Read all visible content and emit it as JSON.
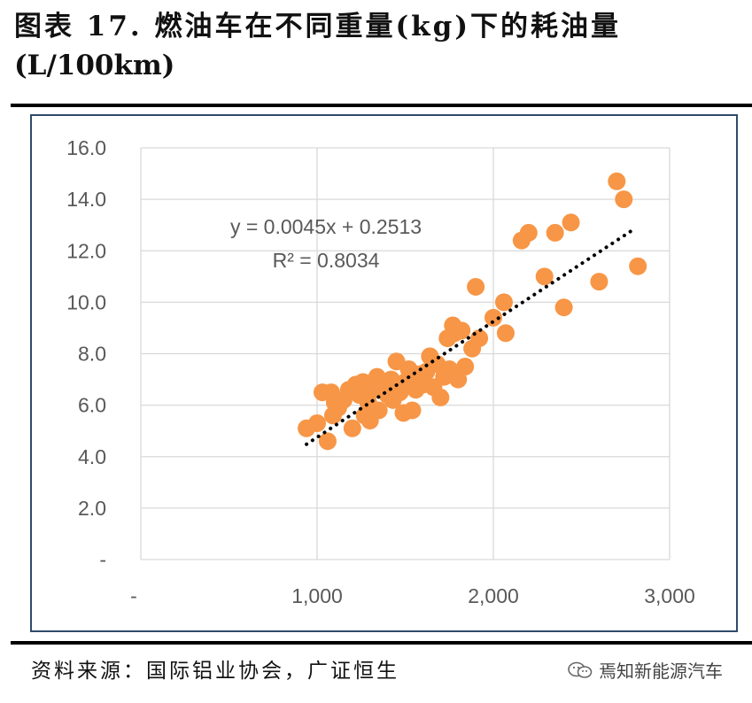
{
  "title": {
    "line1": "图表 17. 燃油车在不同重量(kg)下的耗油量",
    "line2": "(L/100km)"
  },
  "source": "资料来源：国际铝业协会，广证恒生",
  "watermark": "焉知新能源汽车",
  "chart_data": {
    "type": "scatter",
    "title": "",
    "xlabel": "",
    "ylabel": "",
    "xlim": [
      0,
      3000
    ],
    "ylim": [
      0,
      16
    ],
    "x_ticks": [
      "-",
      "1,000",
      "2,000",
      "3,000"
    ],
    "y_ticks": [
      "-",
      "2.0",
      "4.0",
      "6.0",
      "8.0",
      "10.0",
      "12.0",
      "14.0",
      "16.0"
    ],
    "grid": true,
    "legend": "none",
    "marker_color": "#F79646",
    "trendline": {
      "type": "linear",
      "slope": 0.0045,
      "intercept": 0.2513,
      "x_range": [
        940,
        2780
      ],
      "style": "dotted",
      "color": "#000000",
      "equation_label": "y = 0.0045x + 0.2513",
      "r2_label": "R² = 0.8034"
    },
    "points": [
      {
        "x": 940,
        "y": 5.1
      },
      {
        "x": 1000,
        "y": 5.3
      },
      {
        "x": 1030,
        "y": 6.5
      },
      {
        "x": 1060,
        "y": 4.6
      },
      {
        "x": 1080,
        "y": 6.5
      },
      {
        "x": 1090,
        "y": 5.6
      },
      {
        "x": 1100,
        "y": 6.1
      },
      {
        "x": 1120,
        "y": 5.9
      },
      {
        "x": 1150,
        "y": 6.2
      },
      {
        "x": 1180,
        "y": 6.6
      },
      {
        "x": 1200,
        "y": 5.1
      },
      {
        "x": 1220,
        "y": 6.8
      },
      {
        "x": 1240,
        "y": 6.4
      },
      {
        "x": 1260,
        "y": 6.9
      },
      {
        "x": 1270,
        "y": 5.6
      },
      {
        "x": 1290,
        "y": 6.1
      },
      {
        "x": 1300,
        "y": 5.4
      },
      {
        "x": 1320,
        "y": 6.6
      },
      {
        "x": 1340,
        "y": 7.1
      },
      {
        "x": 1350,
        "y": 5.8
      },
      {
        "x": 1370,
        "y": 6.8
      },
      {
        "x": 1400,
        "y": 6.4
      },
      {
        "x": 1420,
        "y": 7.0
      },
      {
        "x": 1430,
        "y": 6.2
      },
      {
        "x": 1450,
        "y": 7.7
      },
      {
        "x": 1470,
        "y": 6.5
      },
      {
        "x": 1490,
        "y": 5.7
      },
      {
        "x": 1500,
        "y": 6.9
      },
      {
        "x": 1520,
        "y": 7.4
      },
      {
        "x": 1540,
        "y": 5.8
      },
      {
        "x": 1560,
        "y": 6.6
      },
      {
        "x": 1580,
        "y": 7.2
      },
      {
        "x": 1600,
        "y": 6.8
      },
      {
        "x": 1620,
        "y": 7.3
      },
      {
        "x": 1640,
        "y": 7.9
      },
      {
        "x": 1660,
        "y": 6.7
      },
      {
        "x": 1680,
        "y": 7.6
      },
      {
        "x": 1700,
        "y": 6.3
      },
      {
        "x": 1720,
        "y": 7.1
      },
      {
        "x": 1740,
        "y": 8.6
      },
      {
        "x": 1750,
        "y": 7.4
      },
      {
        "x": 1770,
        "y": 9.1
      },
      {
        "x": 1780,
        "y": 8.8
      },
      {
        "x": 1800,
        "y": 7.0
      },
      {
        "x": 1820,
        "y": 8.9
      },
      {
        "x": 1840,
        "y": 7.5
      },
      {
        "x": 1880,
        "y": 8.2
      },
      {
        "x": 1900,
        "y": 10.6
      },
      {
        "x": 1920,
        "y": 8.6
      },
      {
        "x": 2000,
        "y": 9.4
      },
      {
        "x": 2060,
        "y": 10.0
      },
      {
        "x": 2070,
        "y": 8.8
      },
      {
        "x": 2160,
        "y": 12.4
      },
      {
        "x": 2200,
        "y": 12.7
      },
      {
        "x": 2290,
        "y": 11.0
      },
      {
        "x": 2350,
        "y": 12.7
      },
      {
        "x": 2400,
        "y": 9.8
      },
      {
        "x": 2440,
        "y": 13.1
      },
      {
        "x": 2600,
        "y": 10.8
      },
      {
        "x": 2700,
        "y": 14.7
      },
      {
        "x": 2740,
        "y": 14.0
      },
      {
        "x": 2820,
        "y": 11.4
      }
    ]
  }
}
